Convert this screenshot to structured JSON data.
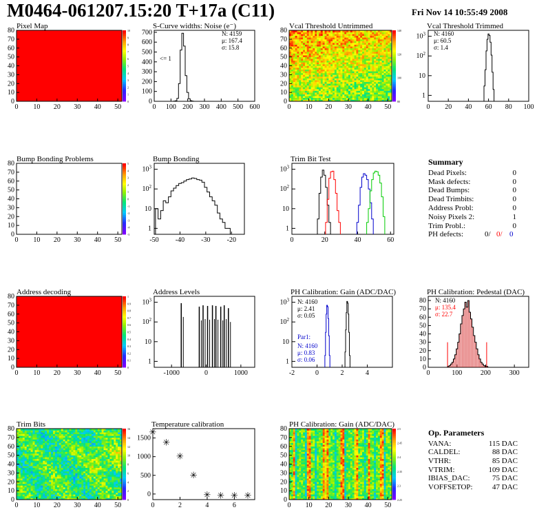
{
  "header": {
    "title": "M0464-061207.15:20 T+17a (C11)",
    "date": "Fri Nov 14 10:55:49 2008"
  },
  "panels": [
    {
      "id": "pixel_map",
      "title": "Pixel Map"
    },
    {
      "id": "scurve",
      "title": "S-Curve widths: Noise (e⁻)"
    },
    {
      "id": "vcal_untrimmed",
      "title": "Vcal Threshold Untrimmed"
    },
    {
      "id": "vcal_trimmed",
      "title": "Vcal Threshold Trimmed"
    },
    {
      "id": "bump_problems",
      "title": "Bump Bonding Problems"
    },
    {
      "id": "bump_bonding",
      "title": "Bump Bonding"
    },
    {
      "id": "trim_bit_test",
      "title": "Trim Bit Test"
    },
    {
      "id": "address_decoding",
      "title": "Address decoding"
    },
    {
      "id": "address_levels",
      "title": "Address Levels"
    },
    {
      "id": "ph_gain",
      "title": "PH Calibration: Gain (ADC/DAC)"
    },
    {
      "id": "ph_pedestal",
      "title": "PH Calibration: Pedestal (DAC)"
    },
    {
      "id": "trim_bits",
      "title": "Trim Bits"
    },
    {
      "id": "temperature",
      "title": "Temperature calibration"
    },
    {
      "id": "ph_gain_map",
      "title": "PH Calibration: Gain (ADC/DAC)"
    }
  ],
  "summary": {
    "title": "Summary",
    "rows": [
      {
        "label": "Dead Pixels:",
        "value": "0"
      },
      {
        "label": "Mask defects:",
        "value": "0"
      },
      {
        "label": "Dead Bumps:",
        "value": "0"
      },
      {
        "label": "Dead Trimbits:",
        "value": "0"
      },
      {
        "label": "Address Probl:",
        "value": "0"
      },
      {
        "label": "Noisy Pixels 2:",
        "value": "1"
      },
      {
        "label": "Trim Probl.:",
        "value": "0"
      }
    ],
    "ph_defects": {
      "label": "PH defects:",
      "v1": "0/",
      "v2": "0/",
      "v3": "0"
    }
  },
  "op_params": {
    "title": "Op. Parameters",
    "rows": [
      {
        "label": "VANA:",
        "value": "115 DAC"
      },
      {
        "label": "CALDEL:",
        "value": "88 DAC"
      },
      {
        "label": "VTHR:",
        "value": "85 DAC"
      },
      {
        "label": "VTRIM:",
        "value": "109 DAC"
      },
      {
        "label": "IBIAS_DAC:",
        "value": "75 DAC"
      },
      {
        "label": "VOFFSETOP:",
        "value": "47 DAC"
      }
    ]
  },
  "colors": {
    "red": "#ff0000",
    "blue": "#0000cc",
    "green": "#00cc00",
    "hist": "#000000",
    "pedestal_fill": "#cc0000"
  },
  "chart_data": [
    {
      "id": "pixel_map",
      "type": "heatmap",
      "title": "Pixel Map",
      "xlim": [
        0,
        52
      ],
      "ylim": [
        0,
        80
      ],
      "x_ticks": [
        0,
        10,
        20,
        30,
        40,
        50
      ],
      "y_ticks": [
        0,
        10,
        20,
        30,
        40,
        50,
        60,
        70,
        80
      ],
      "fill": "uniform",
      "value": 10,
      "palette_ticks": [
        0,
        1,
        2,
        3,
        4,
        5,
        6,
        7,
        8,
        9,
        10
      ]
    },
    {
      "id": "scurve",
      "type": "histogram",
      "title": "S-Curve widths: Noise (e⁻)",
      "xlim": [
        0,
        600
      ],
      "ylim": [
        0,
        720
      ],
      "x_ticks": [
        0,
        100,
        200,
        300,
        400,
        500,
        600
      ],
      "y_ticks": [
        0,
        100,
        200,
        300,
        400,
        500,
        600,
        700
      ],
      "stats": {
        "N": "4159",
        "mu": "167.4",
        "sigma": "15.8"
      },
      "annotation": "<= 1",
      "x": [
        120,
        130,
        140,
        150,
        160,
        170,
        180,
        190,
        200,
        210,
        220,
        230
      ],
      "values": [
        2,
        5,
        30,
        180,
        520,
        690,
        560,
        260,
        90,
        25,
        6,
        2
      ]
    },
    {
      "id": "vcal_untrimmed",
      "type": "heatmap",
      "title": "Vcal Threshold Untrimmed",
      "xlim": [
        0,
        52
      ],
      "ylim": [
        0,
        80
      ],
      "x_ticks": [
        0,
        10,
        20,
        30,
        40,
        50
      ],
      "y_ticks": [
        0,
        10,
        20,
        30,
        40,
        50,
        60,
        70,
        80
      ],
      "palette_ticks": [
        80,
        100,
        120,
        140
      ]
    },
    {
      "id": "vcal_trimmed",
      "type": "histogram",
      "title": "Vcal Threshold Trimmed",
      "xlim": [
        0,
        100
      ],
      "log": true,
      "ylim": [
        0.5,
        2000
      ],
      "x_ticks": [
        0,
        20,
        40,
        60,
        80,
        100
      ],
      "stats": {
        "N": "4160",
        "mu": "60.5",
        "sigma": "1.4"
      },
      "x": [
        56,
        57,
        58,
        59,
        60,
        61,
        62,
        63,
        64,
        65
      ],
      "values": [
        3,
        20,
        180,
        700,
        1300,
        1100,
        500,
        110,
        15,
        2
      ]
    },
    {
      "id": "bump_problems",
      "type": "heatmap",
      "title": "Bump Bonding Problems",
      "xlim": [
        0,
        52
      ],
      "ylim": [
        0,
        80
      ],
      "x_ticks": [
        0,
        10,
        20,
        30,
        40,
        50
      ],
      "y_ticks": [
        0,
        10,
        20,
        30,
        40,
        50,
        60,
        70,
        80
      ],
      "fill": "empty",
      "palette_ticks": [
        -5,
        -4,
        -3,
        -2,
        -1,
        0,
        1,
        2,
        3,
        4,
        5
      ]
    },
    {
      "id": "bump_bonding",
      "type": "histogram",
      "title": "Bump Bonding",
      "xlim": [
        -50,
        -15
      ],
      "log": true,
      "ylim": [
        0.5,
        2000
      ],
      "x_ticks": [
        -50,
        -40,
        -30,
        -20
      ],
      "x": [
        -49,
        -48,
        -47,
        -46,
        -45,
        -44,
        -43,
        -42,
        -41,
        -40,
        -39,
        -38,
        -37,
        -36,
        -35,
        -34,
        -33,
        -32,
        -31,
        -30,
        -29,
        -28,
        -27,
        -26,
        -25,
        -24,
        -23,
        -22,
        -21
      ],
      "values": [
        10,
        3,
        8,
        25,
        20,
        40,
        80,
        110,
        150,
        190,
        210,
        250,
        300,
        320,
        360,
        340,
        300,
        280,
        220,
        120,
        70,
        40,
        25,
        15,
        6,
        3,
        2,
        1,
        1
      ]
    },
    {
      "id": "trim_bit_test",
      "type": "histogram",
      "title": "Trim Bit Test",
      "xlim": [
        0,
        62
      ],
      "log": true,
      "ylim": [
        0.5,
        2000
      ],
      "x_ticks": [
        0,
        20,
        40,
        60
      ],
      "series": [
        {
          "name": "trim1",
          "color": "#000000",
          "x": [
            16,
            17,
            18,
            19,
            20,
            21,
            22,
            23
          ],
          "values": [
            3,
            60,
            400,
            900,
            500,
            120,
            15,
            2
          ]
        },
        {
          "name": "trim2",
          "color": "#ff0000",
          "x": [
            21,
            22,
            23,
            24,
            25,
            26,
            27,
            28,
            29
          ],
          "values": [
            2,
            30,
            350,
            750,
            800,
            300,
            60,
            8,
            2
          ]
        },
        {
          "name": "trim3",
          "color": "#0000cc",
          "x": [
            40,
            41,
            42,
            43,
            44,
            45,
            46,
            47,
            48,
            49
          ],
          "values": [
            2,
            15,
            120,
            400,
            600,
            500,
            300,
            100,
            20,
            3
          ]
        },
        {
          "name": "trim4",
          "color": "#00cc00",
          "x": [
            46,
            47,
            48,
            49,
            50,
            51,
            52,
            53,
            54,
            55,
            56
          ],
          "values": [
            2,
            10,
            80,
            300,
            650,
            800,
            750,
            500,
            200,
            40,
            4
          ]
        }
      ]
    },
    {
      "id": "address_decoding",
      "type": "heatmap",
      "title": "Address decoding",
      "xlim": [
        0,
        52
      ],
      "ylim": [
        0,
        80
      ],
      "x_ticks": [
        0,
        10,
        20,
        30,
        40,
        50
      ],
      "y_ticks": [
        0,
        10,
        20,
        30,
        40,
        50,
        60,
        70,
        80
      ],
      "fill": "uniform",
      "value": 1,
      "palette_ticks": [
        0,
        0.1,
        0.2,
        0.3,
        0.4,
        0.5,
        0.6,
        0.7,
        0.8,
        0.9,
        1
      ]
    },
    {
      "id": "address_levels",
      "type": "histogram",
      "title": "Address Levels",
      "xlim": [
        -1500,
        1400
      ],
      "log": true,
      "ylim": [
        0.5,
        2000
      ],
      "x_ticks": [
        -1000,
        0,
        1000
      ],
      "x": [
        -720,
        -200,
        -90,
        40,
        180,
        280,
        420,
        520,
        640
      ],
      "values": [
        900,
        600,
        700,
        650,
        700,
        650,
        600,
        700,
        500
      ]
    },
    {
      "id": "ph_gain",
      "type": "histogram",
      "title": "PH Calibration: Gain (ADC/DAC)",
      "xlim": [
        -2,
        6
      ],
      "log": true,
      "ylim": [
        0.5,
        2000
      ],
      "x_ticks": [
        -2,
        0,
        2,
        4
      ],
      "stats": {
        "N": "4160",
        "mu": "2.41",
        "sigma": "0.05"
      },
      "par1": {
        "label": "Par1:",
        "N": "4160",
        "mu": "0.83",
        "sigma": "0.06"
      },
      "series": [
        {
          "name": "gain",
          "color": "#000000",
          "x": [
            2.25,
            2.3,
            2.35,
            2.4,
            2.45,
            2.5,
            2.55,
            2.6
          ],
          "values": [
            3,
            40,
            300,
            1100,
            900,
            250,
            30,
            2
          ]
        },
        {
          "name": "par1",
          "color": "#0000cc",
          "x": [
            0.65,
            0.7,
            0.75,
            0.8,
            0.85,
            0.9,
            0.95,
            1.0
          ],
          "values": [
            2,
            30,
            250,
            700,
            600,
            150,
            20,
            2
          ]
        }
      ]
    },
    {
      "id": "ph_pedestal",
      "type": "histogram",
      "title": "PH Calibration: Pedestal (DAC)",
      "xlim": [
        0,
        350
      ],
      "ylim": [
        0,
        85
      ],
      "x_ticks": [
        0,
        100,
        200,
        300
      ],
      "y_ticks": [
        0,
        10,
        20,
        30,
        40,
        50,
        60,
        70,
        80
      ],
      "stats": {
        "N": "4160",
        "mu": "135.4",
        "sigma": "22.7"
      },
      "markers": [
        67.3,
        203.5
      ],
      "x": [
        70,
        75,
        80,
        85,
        90,
        95,
        100,
        105,
        110,
        115,
        120,
        125,
        130,
        135,
        140,
        145,
        150,
        155,
        160,
        165,
        170,
        175,
        180,
        185,
        190,
        195,
        200,
        205
      ],
      "values": [
        1,
        2,
        4,
        6,
        10,
        15,
        22,
        30,
        40,
        52,
        62,
        70,
        78,
        72,
        80,
        66,
        58,
        48,
        38,
        30,
        22,
        15,
        10,
        6,
        4,
        2,
        1,
        1
      ]
    },
    {
      "id": "trim_bits",
      "type": "heatmap",
      "title": "Trim Bits",
      "xlim": [
        0,
        52
      ],
      "ylim": [
        0,
        80
      ],
      "x_ticks": [
        0,
        10,
        20,
        30,
        40,
        50
      ],
      "y_ticks": [
        0,
        10,
        20,
        30,
        40,
        50,
        60,
        70,
        80
      ],
      "palette_ticks": [
        0,
        2,
        4,
        6,
        8,
        10,
        12,
        14,
        16
      ]
    },
    {
      "id": "temperature",
      "type": "scatter",
      "title": "Temperature calibration",
      "xlim": [
        0,
        7.5
      ],
      "ylim": [
        -150,
        1750
      ],
      "x_ticks": [
        0,
        2,
        4,
        6
      ],
      "y_ticks": [
        0,
        500,
        1000,
        1500
      ],
      "x": [
        0,
        1,
        2,
        3,
        4,
        5,
        6,
        7
      ],
      "values": [
        1650,
        1370,
        1000,
        500,
        -30,
        -50,
        -50,
        -50
      ]
    },
    {
      "id": "ph_gain_map",
      "type": "heatmap",
      "title": "PH Calibration: Gain (ADC/DAC)",
      "xlim": [
        0,
        52
      ],
      "ylim": [
        0,
        80
      ],
      "x_ticks": [
        0,
        10,
        20,
        30,
        40,
        50
      ],
      "y_ticks": [
        0,
        10,
        20,
        30,
        40,
        50,
        60,
        70,
        80
      ],
      "palette_ticks": [
        2.25,
        2.3,
        2.35,
        2.4,
        2.45,
        2.5
      ]
    }
  ]
}
